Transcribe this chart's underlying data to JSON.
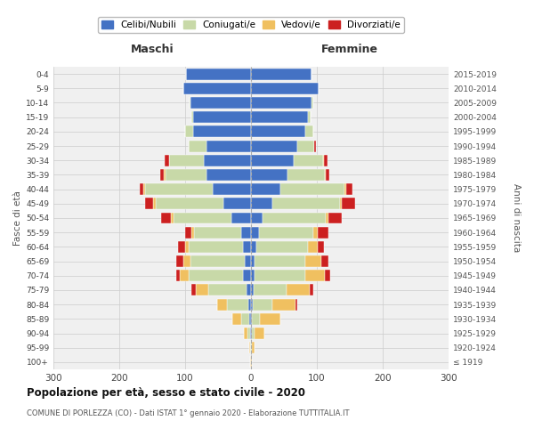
{
  "age_groups": [
    "100+",
    "95-99",
    "90-94",
    "85-89",
    "80-84",
    "75-79",
    "70-74",
    "65-69",
    "60-64",
    "55-59",
    "50-54",
    "45-49",
    "40-44",
    "35-39",
    "30-34",
    "25-29",
    "20-24",
    "15-19",
    "10-14",
    "5-9",
    "0-4"
  ],
  "birth_years": [
    "≤ 1919",
    "1920-1924",
    "1925-1929",
    "1930-1934",
    "1935-1939",
    "1940-1944",
    "1945-1949",
    "1950-1954",
    "1955-1959",
    "1960-1964",
    "1965-1969",
    "1970-1974",
    "1975-1979",
    "1980-1984",
    "1985-1989",
    "1990-1994",
    "1995-1999",
    "2000-2004",
    "2005-2009",
    "2010-2014",
    "2015-2019"
  ],
  "colors": {
    "celibi": "#4472C4",
    "coniugati": "#c8d9a8",
    "vedovi": "#f0c060",
    "divorziati": "#cc2020"
  },
  "legend_labels": [
    "Celibi/Nubili",
    "Coniugati/e",
    "Vedovi/e",
    "Divorziati/e"
  ],
  "m_cel": [
    0,
    0,
    1,
    3,
    4,
    7,
    12,
    10,
    12,
    15,
    30,
    42,
    58,
    68,
    72,
    68,
    88,
    88,
    92,
    103,
    98
  ],
  "m_con": [
    0,
    1,
    4,
    12,
    32,
    58,
    83,
    82,
    82,
    72,
    88,
    103,
    103,
    62,
    52,
    27,
    12,
    2,
    1,
    0,
    0
  ],
  "m_ved": [
    1,
    2,
    6,
    13,
    16,
    19,
    13,
    11,
    6,
    4,
    3,
    3,
    2,
    2,
    1,
    0,
    0,
    0,
    0,
    0,
    0
  ],
  "m_div": [
    0,
    0,
    0,
    0,
    0,
    6,
    6,
    11,
    11,
    9,
    16,
    13,
    6,
    6,
    6,
    0,
    0,
    0,
    0,
    0,
    0
  ],
  "f_cel": [
    0,
    0,
    1,
    2,
    3,
    4,
    6,
    6,
    8,
    12,
    18,
    32,
    45,
    56,
    65,
    70,
    82,
    87,
    92,
    103,
    92
  ],
  "f_con": [
    0,
    1,
    4,
    12,
    30,
    50,
    76,
    76,
    78,
    82,
    95,
    103,
    97,
    56,
    45,
    26,
    12,
    3,
    2,
    0,
    0
  ],
  "f_ved": [
    2,
    5,
    15,
    30,
    35,
    35,
    30,
    25,
    15,
    8,
    5,
    3,
    2,
    2,
    1,
    0,
    0,
    0,
    0,
    0,
    0
  ],
  "f_div": [
    0,
    0,
    0,
    0,
    2,
    5,
    8,
    10,
    10,
    15,
    20,
    20,
    10,
    5,
    5,
    2,
    0,
    0,
    0,
    0,
    0
  ],
  "title": "Popolazione per età, sesso e stato civile - 2020",
  "subtitle": "COMUNE DI PORLEZZA (CO) - Dati ISTAT 1° gennaio 2020 - Elaborazione TUTTITALIA.IT",
  "maschi_label": "Maschi",
  "femmine_label": "Femmine",
  "ylabel_left": "Fasce di età",
  "ylabel_right": "Anni di nascita",
  "xlim": 300,
  "xticks": [
    -300,
    -200,
    -100,
    0,
    100,
    200,
    300
  ],
  "xticklabels": [
    "300",
    "200",
    "100",
    "0",
    "100",
    "200",
    "300"
  ],
  "bg_color": "#ffffff",
  "plot_bg": "#f0f0f0",
  "grid_color": "#cccccc"
}
